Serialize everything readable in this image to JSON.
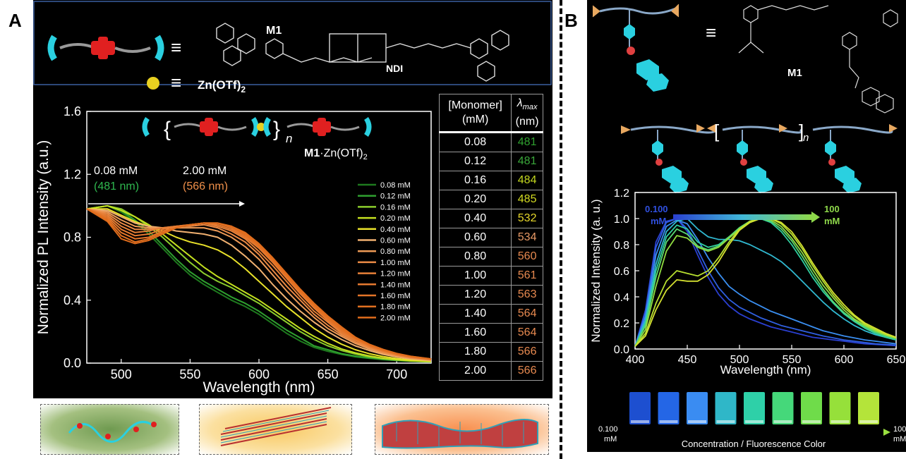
{
  "panels": {
    "a": "A",
    "b": "B"
  },
  "colors": {
    "plateau": [
      "#1e7a1e",
      "#2fa02f",
      "#8ccd2c",
      "#c4e01f",
      "#e8e12a",
      "#f0b070",
      "#ee9a56",
      "#ec8a45",
      "#e88138",
      "#e67a30",
      "#e47428",
      "#e27020",
      "#e06c1c"
    ]
  },
  "panel_a": {
    "legend_m1": "M1",
    "zn_label": "Zn(OTf)",
    "zn_sub": "2",
    "ndi_label": "NDI",
    "equiv": "≡",
    "complex_bold": "M1",
    "complex_rest": "·Zn(OTf)",
    "complex_sub": "2",
    "n_label": "n",
    "annot_low_conc": "0.08 mM",
    "annot_low_wl": "(481 nm)",
    "annot_high_conc": "2.00 mM",
    "annot_high_wl": "(566 nm)",
    "table_header_monomer": "[Monomer]",
    "table_header_unit": "(mM)",
    "table_header_lambda": "λ",
    "table_header_lambda_sub": "max",
    "table_header_lambda_unit": "(nm)",
    "table_rows": [
      {
        "conc": "0.08",
        "lmax": "481",
        "color": "#2fa02f"
      },
      {
        "conc": "0.12",
        "lmax": "481",
        "color": "#3aa83a"
      },
      {
        "conc": "0.16",
        "lmax": "484",
        "color": "#c4d81f"
      },
      {
        "conc": "0.20",
        "lmax": "485",
        "color": "#d4dc22"
      },
      {
        "conc": "0.40",
        "lmax": "532",
        "color": "#e8d82a"
      },
      {
        "conc": "0.60",
        "lmax": "534",
        "color": "#e89a66"
      },
      {
        "conc": "0.80",
        "lmax": "560",
        "color": "#e88a50"
      },
      {
        "conc": "1.00",
        "lmax": "561",
        "color": "#e88a50"
      },
      {
        "conc": "1.20",
        "lmax": "563",
        "color": "#e88a50"
      },
      {
        "conc": "1.40",
        "lmax": "564",
        "color": "#e88a50"
      },
      {
        "conc": "1.60",
        "lmax": "564",
        "color": "#e88a50"
      },
      {
        "conc": "1.80",
        "lmax": "566",
        "color": "#e88a50"
      },
      {
        "conc": "2.00",
        "lmax": "566",
        "color": "#e88a50"
      }
    ]
  },
  "panel_b": {
    "m1_label": "M1",
    "equiv": "≡",
    "n_label": "n",
    "strip_left": "0.100",
    "strip_left_unit": "mM",
    "strip_right": "100",
    "strip_right_unit": "mM",
    "strip_caption": "Concentration / Fluorescence Color",
    "vial_colors": [
      "#1d4fd0",
      "#2466e6",
      "#3a8cf2",
      "#2fb7c8",
      "#2ed0a8",
      "#45d87a",
      "#6fdc4a",
      "#96e03a",
      "#b4e43a"
    ]
  },
  "chart_data": [
    {
      "type": "line",
      "xlabel": "Wavelength (nm)",
      "ylabel": "Normalized PL Intensity (a.u.)",
      "xlim": [
        475,
        725
      ],
      "ylim": [
        0,
        1.6
      ],
      "xticks": [
        500,
        550,
        600,
        650,
        700
      ],
      "yticks": [
        0.0,
        0.4,
        0.8,
        1.2,
        1.6
      ],
      "ytick_labels": [
        "0.0",
        "0.4",
        "0.8",
        "1.2",
        "1.6"
      ],
      "legend_position": "right",
      "x": [
        475,
        490,
        500,
        510,
        520,
        530,
        540,
        550,
        560,
        570,
        580,
        590,
        600,
        610,
        620,
        630,
        640,
        650,
        660,
        670,
        680,
        690,
        700,
        710,
        725
      ],
      "series": [
        {
          "name": "0.08 mM",
          "color": "#1e7a1e",
          "values": [
            0.98,
            1.0,
            0.96,
            0.9,
            0.82,
            0.73,
            0.64,
            0.56,
            0.5,
            0.45,
            0.4,
            0.36,
            0.31,
            0.25,
            0.19,
            0.14,
            0.1,
            0.075,
            0.055,
            0.04,
            0.03,
            0.022,
            0.016,
            0.012,
            0.008
          ]
        },
        {
          "name": "0.12 mM",
          "color": "#2fa02f",
          "values": [
            0.98,
            1.0,
            0.97,
            0.91,
            0.84,
            0.75,
            0.66,
            0.58,
            0.52,
            0.47,
            0.42,
            0.38,
            0.33,
            0.27,
            0.21,
            0.16,
            0.11,
            0.085,
            0.06,
            0.045,
            0.033,
            0.024,
            0.017,
            0.012,
            0.008
          ]
        },
        {
          "name": "0.16 mM",
          "color": "#8ccd2c",
          "values": [
            0.98,
            1.0,
            0.98,
            0.93,
            0.87,
            0.8,
            0.72,
            0.64,
            0.57,
            0.52,
            0.48,
            0.43,
            0.38,
            0.32,
            0.26,
            0.2,
            0.15,
            0.11,
            0.08,
            0.058,
            0.04,
            0.028,
            0.02,
            0.014,
            0.009
          ]
        },
        {
          "name": "0.20 mM",
          "color": "#c4e01f",
          "values": [
            0.98,
            1.0,
            0.97,
            0.93,
            0.88,
            0.82,
            0.75,
            0.68,
            0.61,
            0.55,
            0.5,
            0.45,
            0.4,
            0.34,
            0.28,
            0.22,
            0.17,
            0.125,
            0.09,
            0.065,
            0.046,
            0.032,
            0.022,
            0.015,
            0.01
          ]
        },
        {
          "name": "0.40 mM",
          "color": "#e8e12a",
          "values": [
            0.98,
            0.98,
            0.94,
            0.9,
            0.87,
            0.84,
            0.8,
            0.77,
            0.75,
            0.72,
            0.67,
            0.6,
            0.52,
            0.44,
            0.36,
            0.29,
            0.22,
            0.165,
            0.12,
            0.085,
            0.06,
            0.042,
            0.029,
            0.02,
            0.012
          ]
        },
        {
          "name": "0.60 mM",
          "color": "#f0b070",
          "values": [
            0.98,
            0.97,
            0.93,
            0.89,
            0.87,
            0.86,
            0.84,
            0.83,
            0.82,
            0.8,
            0.75,
            0.68,
            0.6,
            0.5,
            0.41,
            0.33,
            0.26,
            0.2,
            0.15,
            0.11,
            0.08,
            0.056,
            0.039,
            0.027,
            0.016
          ]
        },
        {
          "name": "0.80 mM",
          "color": "#ee9a56",
          "values": [
            0.98,
            0.96,
            0.91,
            0.87,
            0.86,
            0.86,
            0.86,
            0.86,
            0.86,
            0.84,
            0.8,
            0.74,
            0.66,
            0.56,
            0.46,
            0.37,
            0.29,
            0.22,
            0.17,
            0.125,
            0.09,
            0.064,
            0.045,
            0.031,
            0.019
          ]
        },
        {
          "name": "1.00 mM",
          "color": "#ec8a45",
          "values": [
            0.98,
            0.95,
            0.89,
            0.85,
            0.85,
            0.86,
            0.87,
            0.87,
            0.88,
            0.86,
            0.82,
            0.77,
            0.69,
            0.59,
            0.49,
            0.4,
            0.31,
            0.24,
            0.18,
            0.135,
            0.098,
            0.07,
            0.049,
            0.034,
            0.021
          ]
        },
        {
          "name": "1.20 mM",
          "color": "#e88138",
          "values": [
            0.98,
            0.94,
            0.87,
            0.83,
            0.84,
            0.86,
            0.87,
            0.88,
            0.89,
            0.87,
            0.84,
            0.79,
            0.71,
            0.62,
            0.52,
            0.42,
            0.33,
            0.26,
            0.19,
            0.145,
            0.105,
            0.075,
            0.053,
            0.037,
            0.023
          ]
        },
        {
          "name": "1.40 mM",
          "color": "#e67a30",
          "values": [
            0.98,
            0.93,
            0.85,
            0.81,
            0.82,
            0.85,
            0.87,
            0.88,
            0.89,
            0.88,
            0.85,
            0.8,
            0.73,
            0.64,
            0.54,
            0.44,
            0.35,
            0.27,
            0.2,
            0.15,
            0.11,
            0.079,
            0.056,
            0.039,
            0.024
          ]
        },
        {
          "name": "1.60 mM",
          "color": "#e47428",
          "values": [
            0.98,
            0.92,
            0.83,
            0.79,
            0.8,
            0.84,
            0.86,
            0.88,
            0.89,
            0.89,
            0.86,
            0.81,
            0.74,
            0.65,
            0.55,
            0.45,
            0.36,
            0.28,
            0.21,
            0.155,
            0.114,
            0.082,
            0.058,
            0.041,
            0.025
          ]
        },
        {
          "name": "1.80 mM",
          "color": "#e27020",
          "values": [
            0.98,
            0.91,
            0.81,
            0.77,
            0.79,
            0.83,
            0.86,
            0.88,
            0.89,
            0.89,
            0.87,
            0.82,
            0.75,
            0.66,
            0.56,
            0.46,
            0.37,
            0.29,
            0.22,
            0.16,
            0.118,
            0.085,
            0.06,
            0.043,
            0.026
          ]
        },
        {
          "name": "2.00 mM",
          "color": "#e06c1c",
          "values": [
            0.98,
            0.9,
            0.79,
            0.76,
            0.78,
            0.82,
            0.86,
            0.88,
            0.89,
            0.89,
            0.87,
            0.83,
            0.76,
            0.67,
            0.57,
            0.47,
            0.38,
            0.3,
            0.23,
            0.165,
            0.12,
            0.088,
            0.062,
            0.044,
            0.027
          ]
        }
      ]
    },
    {
      "type": "line",
      "xlabel": "Wavelength (nm)",
      "ylabel": "Normalized Intensity (a. u.)",
      "xlim": [
        400,
        650
      ],
      "ylim": [
        0,
        1.2
      ],
      "xticks": [
        400,
        450,
        500,
        550,
        600,
        650
      ],
      "yticks": [
        0.0,
        0.2,
        0.4,
        0.6,
        0.8,
        1.0,
        1.2
      ],
      "ytick_labels": [
        "0.0",
        "0.2",
        "0.4",
        "0.6",
        "0.8",
        "1.0",
        "1.2"
      ],
      "gradient_label_left": "0.100",
      "gradient_label_left_unit": "mM",
      "gradient_label_right": "100",
      "gradient_label_right_unit": "mM",
      "x": [
        400,
        410,
        420,
        430,
        440,
        450,
        460,
        470,
        480,
        490,
        500,
        510,
        520,
        530,
        540,
        550,
        560,
        570,
        580,
        590,
        600,
        610,
        620,
        630,
        640,
        650
      ],
      "series": [
        {
          "color": "#2a3fd0",
          "values": [
            0.02,
            0.3,
            0.82,
            0.98,
            1.0,
            0.9,
            0.72,
            0.55,
            0.42,
            0.33,
            0.27,
            0.23,
            0.2,
            0.17,
            0.15,
            0.13,
            0.11,
            0.09,
            0.08,
            0.07,
            0.06,
            0.05,
            0.04,
            0.035,
            0.03,
            0.025
          ]
        },
        {
          "color": "#2f5fe0",
          "values": [
            0.02,
            0.28,
            0.78,
            0.97,
            1.0,
            0.92,
            0.76,
            0.6,
            0.47,
            0.38,
            0.32,
            0.28,
            0.24,
            0.21,
            0.18,
            0.16,
            0.14,
            0.12,
            0.1,
            0.085,
            0.07,
            0.06,
            0.05,
            0.04,
            0.035,
            0.03
          ]
        },
        {
          "color": "#3a8ef0",
          "values": [
            0.02,
            0.25,
            0.72,
            0.94,
            0.99,
            0.96,
            0.84,
            0.7,
            0.58,
            0.48,
            0.42,
            0.37,
            0.33,
            0.29,
            0.26,
            0.23,
            0.2,
            0.17,
            0.14,
            0.12,
            0.1,
            0.085,
            0.07,
            0.06,
            0.05,
            0.04
          ]
        },
        {
          "color": "#30b8d0",
          "values": [
            0.02,
            0.22,
            0.65,
            0.9,
            0.98,
            1.0,
            0.92,
            0.86,
            0.84,
            0.84,
            0.83,
            0.8,
            0.76,
            0.72,
            0.67,
            0.6,
            0.52,
            0.44,
            0.36,
            0.29,
            0.23,
            0.18,
            0.14,
            0.11,
            0.09,
            0.07
          ]
        },
        {
          "color": "#30d0a0",
          "values": [
            0.02,
            0.2,
            0.6,
            0.86,
            0.95,
            0.92,
            0.82,
            0.78,
            0.8,
            0.86,
            0.93,
            0.98,
            1.0,
            0.97,
            0.9,
            0.8,
            0.68,
            0.55,
            0.44,
            0.35,
            0.27,
            0.21,
            0.16,
            0.12,
            0.09,
            0.07
          ]
        },
        {
          "color": "#5ad870",
          "values": [
            0.02,
            0.18,
            0.55,
            0.82,
            0.92,
            0.88,
            0.79,
            0.76,
            0.79,
            0.86,
            0.93,
            0.98,
            1.0,
            0.98,
            0.92,
            0.83,
            0.71,
            0.58,
            0.46,
            0.36,
            0.28,
            0.22,
            0.17,
            0.13,
            0.1,
            0.08
          ]
        },
        {
          "color": "#90dc40",
          "values": [
            0.02,
            0.15,
            0.48,
            0.75,
            0.87,
            0.85,
            0.78,
            0.75,
            0.78,
            0.85,
            0.92,
            0.97,
            1.0,
            0.99,
            0.94,
            0.85,
            0.74,
            0.61,
            0.49,
            0.39,
            0.3,
            0.23,
            0.18,
            0.14,
            0.11,
            0.08
          ]
        },
        {
          "color": "#b8e030",
          "values": [
            0.02,
            0.12,
            0.35,
            0.52,
            0.6,
            0.58,
            0.56,
            0.6,
            0.7,
            0.82,
            0.92,
            0.98,
            1.0,
            1.0,
            0.96,
            0.88,
            0.77,
            0.64,
            0.52,
            0.41,
            0.32,
            0.25,
            0.19,
            0.15,
            0.11,
            0.09
          ]
        },
        {
          "color": "#d4e030",
          "values": [
            0.02,
            0.1,
            0.3,
            0.45,
            0.53,
            0.52,
            0.52,
            0.57,
            0.67,
            0.8,
            0.91,
            0.97,
            1.0,
            1.0,
            0.97,
            0.9,
            0.79,
            0.66,
            0.54,
            0.43,
            0.34,
            0.26,
            0.2,
            0.16,
            0.12,
            0.09
          ]
        }
      ]
    }
  ]
}
